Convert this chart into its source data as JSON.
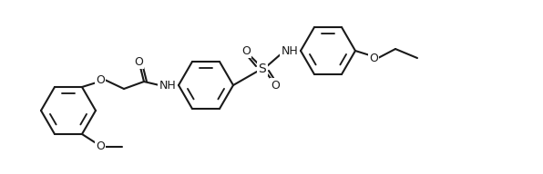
{
  "bg_color": "#ffffff",
  "line_color": "#1a1a1a",
  "lw": 1.5,
  "fig_width": 5.96,
  "fig_height": 1.92,
  "dpi": 100,
  "xlim": [
    0,
    596
  ],
  "ylim": [
    0,
    192
  ],
  "r": 30
}
